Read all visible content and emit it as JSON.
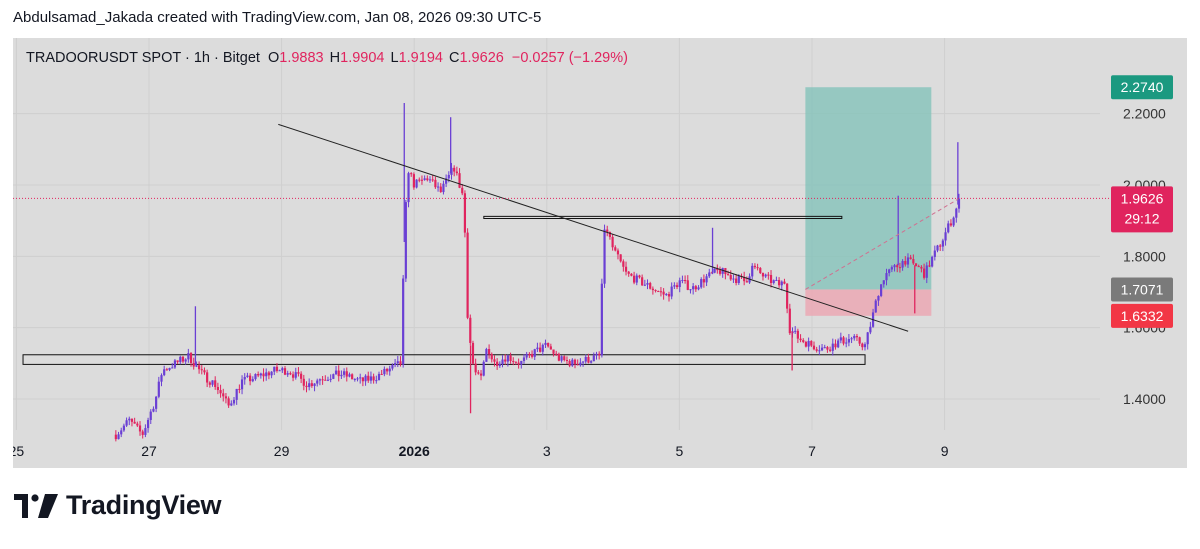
{
  "credit": "Abdulsamad_Jakada created with TradingView.com, Jan 08, 2026 09:30 UTC-5",
  "brand": "TradingView",
  "header": {
    "symbol": "TRADOORUSDT SPOT · 1h · Bitget",
    "o_label": "O",
    "o": "1.9883",
    "h_label": "H",
    "h": "1.9904",
    "l_label": "L",
    "l": "1.9194",
    "c_label": "C",
    "c": "1.9626",
    "change": "−0.0257 (−1.29%)"
  },
  "colors": {
    "up": "#6a3fd4",
    "down": "#e0245e",
    "target_zone": "#7fc2b8",
    "stop_zone": "#eba8b4",
    "target_badge": "#1b9980",
    "price_badge": "#e0245e",
    "entry_badge": "#7a7a7a",
    "stop_badge": "#f23645"
  },
  "chart_data": {
    "type": "candlestick",
    "y_axis": {
      "range": [
        1.27,
        2.3
      ],
      "ticks": [
        "1.4000",
        "1.6000",
        "1.8000",
        "2.0000",
        "2.2000"
      ],
      "tick_values": [
        1.4,
        1.6,
        1.8,
        2.0,
        2.2
      ]
    },
    "x_axis": {
      "ticks": [
        "25",
        "27",
        "29",
        "2026",
        "3",
        "5",
        "7",
        "9"
      ],
      "tick_positions_days": [
        -1,
        1,
        3,
        5,
        7,
        9,
        11,
        13
      ]
    },
    "price_labels": {
      "target": "2.2740",
      "current": "1.9626",
      "countdown": "29:12",
      "entry": "1.7071",
      "stop": "1.6332"
    },
    "position": {
      "target": 2.274,
      "entry": 1.7071,
      "stop": 1.6332,
      "start_day": 10.9,
      "end_day": 12.8
    },
    "trendline": {
      "from": [
        2.95,
        2.17
      ],
      "to": [
        12.45,
        1.59
      ]
    },
    "resistance_box": {
      "from_day": 6.05,
      "to_day": 11.45,
      "low": 1.906,
      "high": 1.912
    },
    "support_box": {
      "from_day": -0.9,
      "to_day": 11.8,
      "low": 1.497,
      "high": 1.524
    },
    "path": [
      [
        0.5,
        1.3
      ],
      [
        0.7,
        1.34
      ],
      [
        0.9,
        1.3
      ],
      [
        1.1,
        1.4
      ],
      [
        1.2,
        1.48
      ],
      [
        1.4,
        1.5
      ],
      [
        1.6,
        1.52
      ],
      [
        1.8,
        1.47
      ],
      [
        2.0,
        1.44
      ],
      [
        2.2,
        1.38
      ],
      [
        2.4,
        1.45
      ],
      [
        2.6,
        1.46
      ],
      [
        2.9,
        1.48
      ],
      [
        3.1,
        1.48
      ],
      [
        3.4,
        1.44
      ],
      [
        3.6,
        1.46
      ],
      [
        3.9,
        1.47
      ],
      [
        4.2,
        1.45
      ],
      [
        4.4,
        1.46
      ],
      [
        4.6,
        1.48
      ],
      [
        4.8,
        1.5
      ],
      [
        4.85,
        1.84
      ],
      [
        4.9,
        2.05
      ],
      [
        5.0,
        2.0
      ],
      [
        5.2,
        2.02
      ],
      [
        5.4,
        1.98
      ],
      [
        5.6,
        2.05
      ],
      [
        5.75,
        1.96
      ],
      [
        5.8,
        1.65
      ],
      [
        5.85,
        1.55
      ],
      [
        5.9,
        1.48
      ],
      [
        6.0,
        1.45
      ],
      [
        6.1,
        1.55
      ],
      [
        6.2,
        1.5
      ],
      [
        6.4,
        1.52
      ],
      [
        6.6,
        1.5
      ],
      [
        6.8,
        1.53
      ],
      [
        7.0,
        1.55
      ],
      [
        7.2,
        1.51
      ],
      [
        7.4,
        1.5
      ],
      [
        7.6,
        1.51
      ],
      [
        7.8,
        1.52
      ],
      [
        7.85,
        1.85
      ],
      [
        7.9,
        1.88
      ],
      [
        8.0,
        1.82
      ],
      [
        8.2,
        1.75
      ],
      [
        8.4,
        1.73
      ],
      [
        8.6,
        1.71
      ],
      [
        8.8,
        1.69
      ],
      [
        9.0,
        1.73
      ],
      [
        9.2,
        1.71
      ],
      [
        9.4,
        1.74
      ],
      [
        9.6,
        1.76
      ],
      [
        9.8,
        1.74
      ],
      [
        10.0,
        1.73
      ],
      [
        10.1,
        1.77
      ],
      [
        10.3,
        1.74
      ],
      [
        10.5,
        1.72
      ],
      [
        10.6,
        1.73
      ],
      [
        10.65,
        1.6
      ],
      [
        10.8,
        1.57
      ],
      [
        11.0,
        1.55
      ],
      [
        11.2,
        1.54
      ],
      [
        11.4,
        1.56
      ],
      [
        11.6,
        1.57
      ],
      [
        11.8,
        1.55
      ],
      [
        11.9,
        1.62
      ],
      [
        12.0,
        1.7
      ],
      [
        12.1,
        1.75
      ],
      [
        12.2,
        1.76
      ],
      [
        12.4,
        1.79
      ],
      [
        12.6,
        1.77
      ],
      [
        12.7,
        1.75
      ],
      [
        12.8,
        1.79
      ],
      [
        12.95,
        1.84
      ],
      [
        13.05,
        1.88
      ],
      [
        13.15,
        1.92
      ],
      [
        13.23,
        1.96
      ]
    ],
    "spikes": [
      {
        "day": 1.7,
        "high": 1.66
      },
      {
        "day": 4.85,
        "high": 2.23
      },
      {
        "day": 5.55,
        "high": 2.19
      },
      {
        "day": 5.85,
        "low": 1.36
      },
      {
        "day": 9.5,
        "high": 1.88
      },
      {
        "day": 12.3,
        "high": 1.97
      },
      {
        "day": 13.2,
        "high": 2.12
      },
      {
        "day": 12.55,
        "low": 1.64
      },
      {
        "day": 10.7,
        "low": 1.48
      }
    ]
  }
}
